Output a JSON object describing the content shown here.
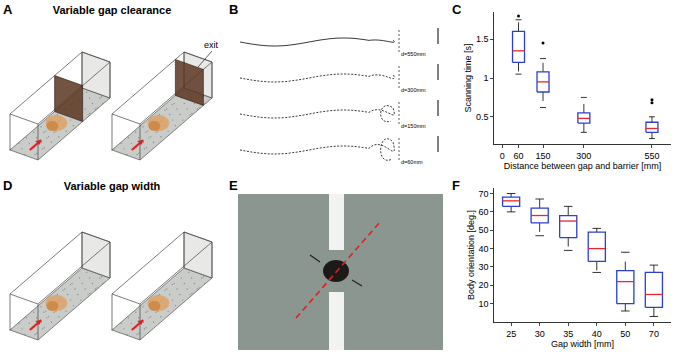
{
  "panels": {
    "A": {
      "label": "A",
      "title": "Variable gap clearance",
      "exit": "exit"
    },
    "B": {
      "label": "B",
      "trajectories": [
        "d=550mm",
        "d=300mm",
        "d=150mm",
        "d=60mm"
      ]
    },
    "D": {
      "label": "D",
      "title": "Variable gap width"
    },
    "E": {
      "label": "E"
    }
  },
  "chart_data": [
    {
      "label": "C",
      "type": "box",
      "color": "#2b3fd1",
      "x_label": "Distance between gap and barrier [mm]",
      "y_label": "Scanning time [s]",
      "x": [
        60,
        150,
        300,
        550
      ],
      "q1": [
        1.2,
        0.82,
        0.42,
        0.3
      ],
      "median": [
        1.35,
        0.95,
        0.48,
        0.35
      ],
      "q3": [
        1.6,
        1.08,
        0.55,
        0.43
      ],
      "lower": [
        1.05,
        0.62,
        0.3,
        0.22
      ],
      "upper": [
        1.75,
        1.25,
        0.75,
        0.5
      ],
      "outliers": [
        [
          1.8
        ],
        [
          1.45
        ],
        [],
        [
          0.68,
          0.72
        ]
      ],
      "xlim": [
        -30,
        620
      ],
      "xticks": [
        0,
        60,
        150,
        300,
        550
      ],
      "ylim": [
        0.15,
        1.85
      ],
      "yticks": [
        0.5,
        1,
        1.5
      ],
      "grid": false
    },
    {
      "label": "F",
      "type": "box",
      "color": "#2b3fd1",
      "x_label": "Gap width [mm]",
      "y_label": "Body orientation [deg.]",
      "categories": [
        "25",
        "30",
        "35",
        "40",
        "50",
        "70"
      ],
      "q1": [
        63,
        54,
        46,
        33,
        10,
        8
      ],
      "median": [
        66,
        58,
        55,
        40,
        22,
        15
      ],
      "q3": [
        68,
        62,
        58,
        49,
        28,
        27
      ],
      "lower": [
        60,
        47,
        39,
        27,
        6,
        3
      ],
      "upper": [
        70,
        67,
        63,
        51,
        38,
        31
      ],
      "outliers": [
        [],
        [],
        [],
        [],
        [],
        []
      ],
      "ylim": [
        0,
        73
      ],
      "yticks": [
        10,
        20,
        30,
        40,
        50,
        60,
        70
      ],
      "grid": false
    }
  ]
}
